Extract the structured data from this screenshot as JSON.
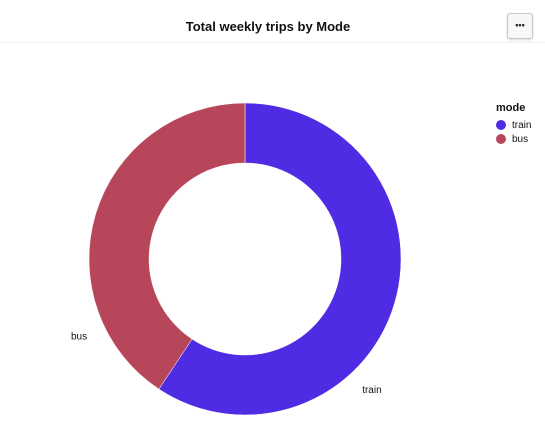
{
  "header": {
    "title": "Total weekly trips by Mode",
    "more_label": "•••"
  },
  "legend": {
    "title": "mode",
    "items": [
      {
        "label": "train",
        "color": "#4f2be3"
      },
      {
        "label": "bus",
        "color": "#b8465a"
      }
    ]
  },
  "chart_data": {
    "type": "pie",
    "donut": true,
    "title": "Total weekly trips by Mode",
    "legend_title": "mode",
    "legend_position": "right",
    "categories": [
      "train",
      "bus"
    ],
    "values": [
      59.3,
      40.7
    ],
    "colors": [
      "#4f2be3",
      "#b8465a"
    ],
    "slice_labels": [
      "train",
      "bus"
    ]
  }
}
